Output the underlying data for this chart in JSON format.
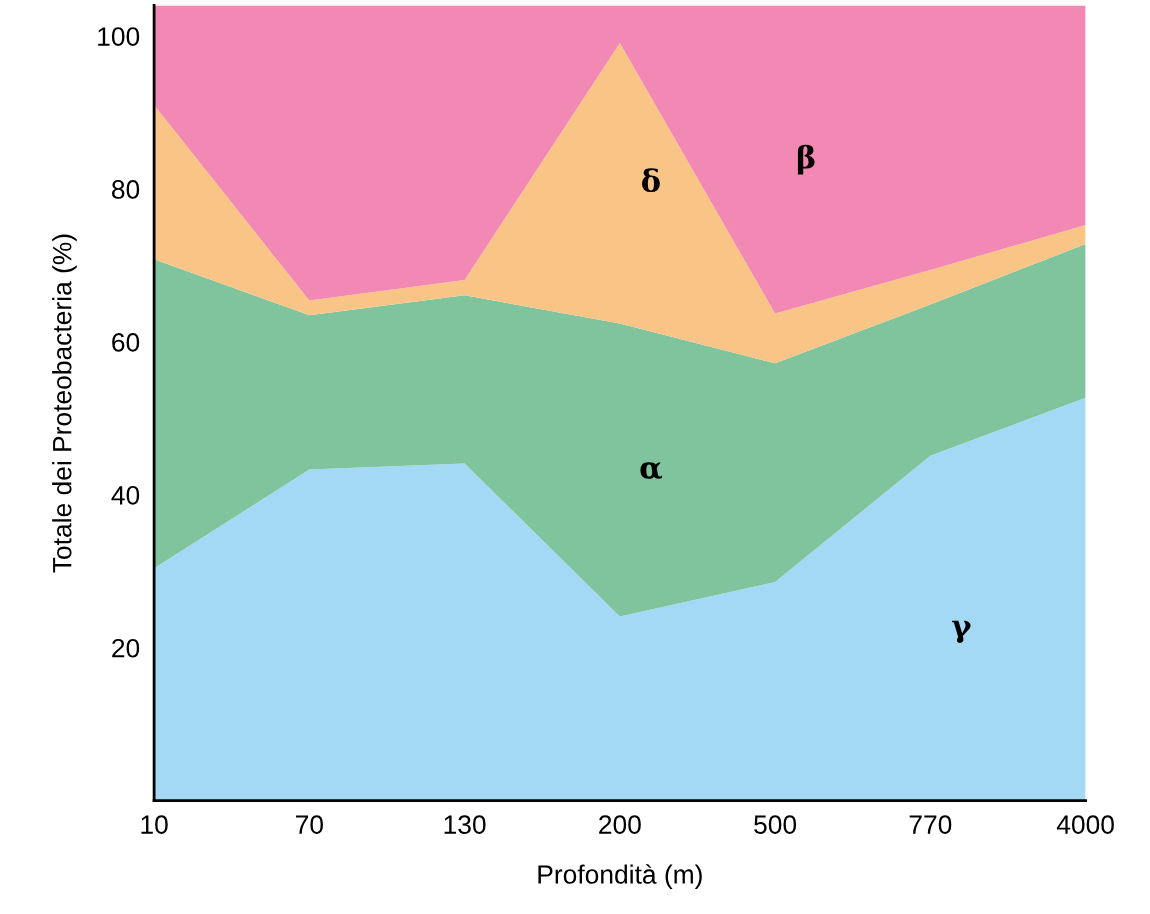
{
  "chart_data": {
    "type": "area",
    "stacked": true,
    "xlabel": "Profondità (m)",
    "ylabel": "Totale dei Proteobacteria (%)",
    "categories": [
      "10",
      "70",
      "130",
      "200",
      "500",
      "770",
      "4000"
    ],
    "series": [
      {
        "name": "γ",
        "color": "#a3d9f5",
        "values": [
          30.4,
          43.3,
          44.1,
          24.1,
          28.6,
          45.1,
          52.7
        ]
      },
      {
        "name": "α",
        "color": "#80c49e",
        "values": [
          40.4,
          20.2,
          22.0,
          38.3,
          28.6,
          19.8,
          20.1
        ]
      },
      {
        "name": "δ",
        "color": "#f9c587",
        "values": [
          20.2,
          1.9,
          2.0,
          36.7,
          6.5,
          4.5,
          2.5
        ]
      },
      {
        "name": "β",
        "color": "#f288b4",
        "values": [
          13.0,
          38.6,
          35.9,
          4.9,
          40.3,
          34.6,
          28.7
        ]
      }
    ],
    "ylim": [
      0,
      104
    ],
    "yticks": [
      20,
      40,
      60,
      80,
      100
    ],
    "grid": false,
    "legend": false
  }
}
